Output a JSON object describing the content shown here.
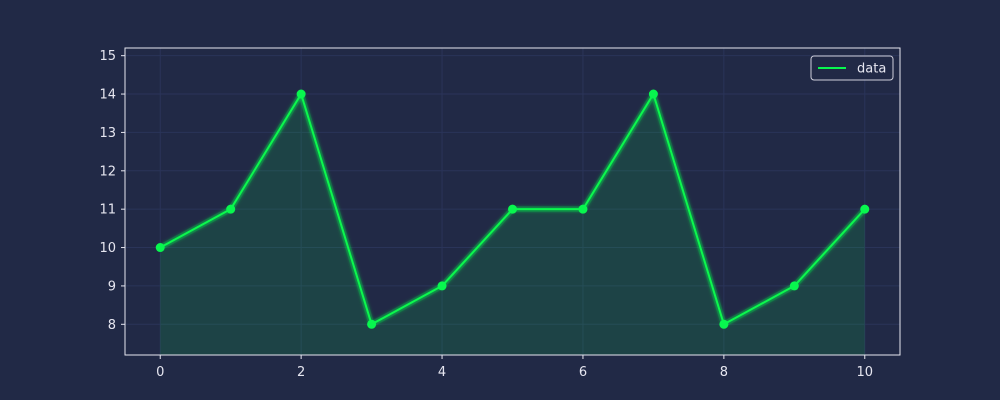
{
  "chart_data": {
    "type": "line",
    "title": "",
    "xlabel": "",
    "ylabel": "",
    "x": [
      0,
      1,
      2,
      3,
      4,
      5,
      6,
      7,
      8,
      9,
      10
    ],
    "series": [
      {
        "name": "data",
        "values": [
          10,
          11,
          14,
          8,
          9,
          11,
          11,
          14,
          8,
          9,
          11
        ]
      }
    ],
    "xlim": [
      -0.5,
      10.5
    ],
    "ylim": [
      7.2,
      15.2
    ],
    "xticks": [
      0,
      2,
      4,
      6,
      8,
      10
    ],
    "yticks": [
      8,
      9,
      10,
      11,
      12,
      13,
      14,
      15
    ],
    "grid": true,
    "area_fill": true,
    "markers": true,
    "legend_position": "top-right",
    "colors": {
      "background": "#212946",
      "line": "#08F74E",
      "fill": "#08F74E",
      "grid": "#2A3459",
      "axis": "#E6E6F0",
      "text": "#E6E6F0"
    }
  }
}
